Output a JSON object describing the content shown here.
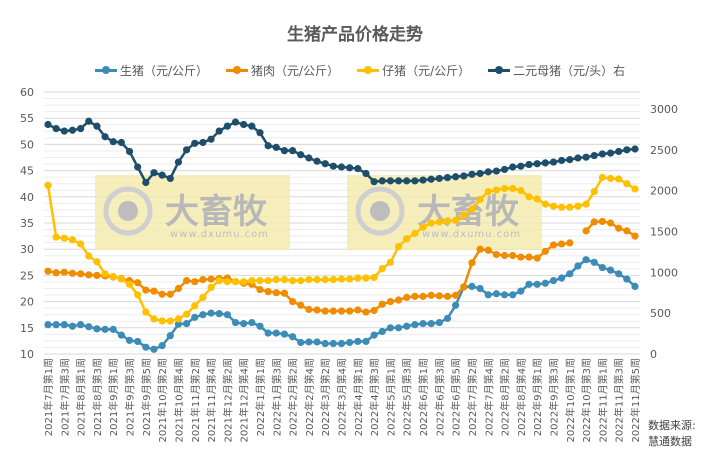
{
  "chart_data": {
    "type": "line",
    "title": "生猪产品价格走势",
    "legend_position": "top",
    "grid": true,
    "left_axis": {
      "min": 10,
      "max": 60,
      "ticks": [
        10,
        15,
        20,
        25,
        30,
        35,
        40,
        45,
        50,
        55,
        60
      ]
    },
    "right_axis": {
      "min": 0,
      "max": 3000,
      "ticks": [
        0,
        500,
        1000,
        1500,
        2000,
        2500,
        3000
      ]
    },
    "x_labels": [
      "2021年7月第1周",
      "2021年7月第3周",
      "2021年8月第1周",
      "2021年8月第3周",
      "2021年9月第1周",
      "2021年9月第3周",
      "2021年9月第5周",
      "2021年10月第2周",
      "2021年10月第4周",
      "2021年11月第2周",
      "2021年11月第4周",
      "2021年12月第2周",
      "2021年12月第4周",
      "2022年1月第1周",
      "2022年1月第3周",
      "2022年2月第2周",
      "2022年2月第4周",
      "2022年3月第2周",
      "2022年3月第4周",
      "2022年4月第1周",
      "2022年4月第3周",
      "2022年5月第1周",
      "2022年5月第3周",
      "2022年6月第1周",
      "2022年6月第3周",
      "2022年6月第5周",
      "2022年7月第2周",
      "2022年7月第4周",
      "2022年8月第2周",
      "2022年8月第4周",
      "2022年9月第1周",
      "2022年9月第3周",
      "2022年10月第1周",
      "2022年10月第3周",
      "2022年11月第1周",
      "2022年11月第3周",
      "2022年11月第5周"
    ],
    "series": [
      {
        "name": "生猪（元/公斤）",
        "axis": "left",
        "color": "#3d8bb7",
        "values": [
          15.6,
          15.6,
          15.6,
          15.3,
          15.6,
          15.2,
          14.8,
          14.7,
          14.7,
          13.6,
          12.6,
          12.4,
          11.3,
          10.9,
          11.6,
          13.5,
          15.7,
          15.8,
          17.0,
          17.5,
          17.8,
          17.7,
          17.5,
          16.0,
          15.8,
          16.0,
          15.3,
          14.0,
          14.0,
          13.8,
          13.3,
          12.2,
          12.3,
          12.3,
          12.0,
          12.0,
          12.0,
          12.2,
          12.4,
          12.4,
          13.6,
          14.3,
          15.0,
          15.0,
          15.3,
          15.6,
          15.8,
          15.8,
          16.0,
          16.8,
          19.3,
          22.8,
          22.9,
          22.5,
          21.3,
          21.5,
          21.3,
          21.3,
          22.0,
          23.3,
          23.3,
          23.5,
          24.0,
          24.5,
          25.3,
          26.8,
          28.0,
          27.5,
          26.5,
          26.0,
          25.3,
          24.3,
          22.9
        ]
      },
      {
        "name": "猪肉（元/公斤）",
        "axis": "left",
        "color": "#f08c00",
        "values": [
          25.8,
          25.5,
          25.6,
          25.4,
          25.3,
          25.1,
          25.0,
          24.9,
          24.7,
          24.4,
          24.0,
          23.6,
          22.2,
          22.0,
          21.4,
          21.4,
          22.5,
          24.0,
          23.8,
          24.2,
          24.3,
          24.4,
          24.5,
          23.8,
          23.5,
          23.3,
          22.3,
          21.9,
          21.7,
          21.6,
          20.0,
          19.3,
          18.5,
          18.4,
          18.2,
          18.2,
          18.2,
          18.2,
          18.4,
          18.0,
          18.3,
          19.5,
          20.0,
          20.3,
          20.8,
          21.0,
          21.0,
          21.2,
          21.1,
          21.0,
          21.2,
          22.8,
          27.4,
          30.0,
          29.8,
          29.0,
          28.8,
          28.8,
          28.5,
          28.5,
          28.3,
          29.6,
          30.8,
          31.0,
          31.2,
          null,
          33.5,
          35.2,
          35.3,
          35.0,
          34.0,
          33.5,
          32.5
        ]
      },
      {
        "name": "仔猪（元/公斤）",
        "axis": "left",
        "color": "#ffc000",
        "values": [
          42.2,
          32.3,
          32.1,
          31.8,
          31.0,
          28.7,
          27.6,
          25.3,
          24.8,
          24.3,
          23.3,
          21.3,
          18.0,
          16.7,
          16.3,
          16.3,
          16.7,
          17.6,
          19.2,
          20.8,
          22.7,
          24.0,
          23.8,
          23.8,
          23.8,
          24.0,
          24.0,
          24.0,
          24.2,
          24.2,
          24.0,
          24.0,
          24.2,
          24.2,
          24.2,
          24.2,
          24.3,
          24.3,
          24.5,
          24.5,
          24.6,
          26.3,
          27.5,
          30.5,
          32.0,
          33.0,
          34.2,
          35.0,
          35.2,
          35.4,
          35.5,
          36.5,
          37.6,
          39.5,
          41.0,
          41.3,
          41.6,
          41.6,
          41.2,
          40.0,
          39.6,
          38.6,
          38.2,
          38.0,
          38.0,
          38.2,
          38.6,
          41.0,
          43.7,
          43.5,
          43.4,
          42.5,
          41.5
        ]
      },
      {
        "name": "二元母猪（元/头）右",
        "axis": "right",
        "color": "#1f4e6b",
        "values": [
          2810,
          2760,
          2730,
          2740,
          2760,
          2850,
          2790,
          2660,
          2600,
          2590,
          2480,
          2290,
          2100,
          2220,
          2190,
          2150,
          2350,
          2500,
          2580,
          2590,
          2630,
          2730,
          2790,
          2840,
          2810,
          2790,
          2710,
          2550,
          2530,
          2490,
          2490,
          2440,
          2400,
          2360,
          2330,
          2300,
          2290,
          2280,
          2270,
          2210,
          2110,
          2120,
          2120,
          2120,
          2120,
          2120,
          2130,
          2140,
          2150,
          2160,
          2170,
          2180,
          2200,
          2210,
          2230,
          2240,
          2260,
          2290,
          2300,
          2320,
          2330,
          2340,
          2350,
          2370,
          2380,
          2400,
          2410,
          2430,
          2450,
          2460,
          2480,
          2500,
          2510
        ]
      }
    ],
    "source_label": "数据来源:",
    "source_name": "慧通数据",
    "watermark": {
      "brand": "大畜牧",
      "url": "www.dxumu.com"
    }
  },
  "legend": [
    {
      "label": "生猪（元/公斤）",
      "color": "#3d8bb7"
    },
    {
      "label": "猪肉（元/公斤）",
      "color": "#f08c00"
    },
    {
      "label": "仔猪（元/公斤）",
      "color": "#ffc000"
    },
    {
      "label": "二元母猪（元/头）右",
      "color": "#1f4e6b"
    }
  ]
}
